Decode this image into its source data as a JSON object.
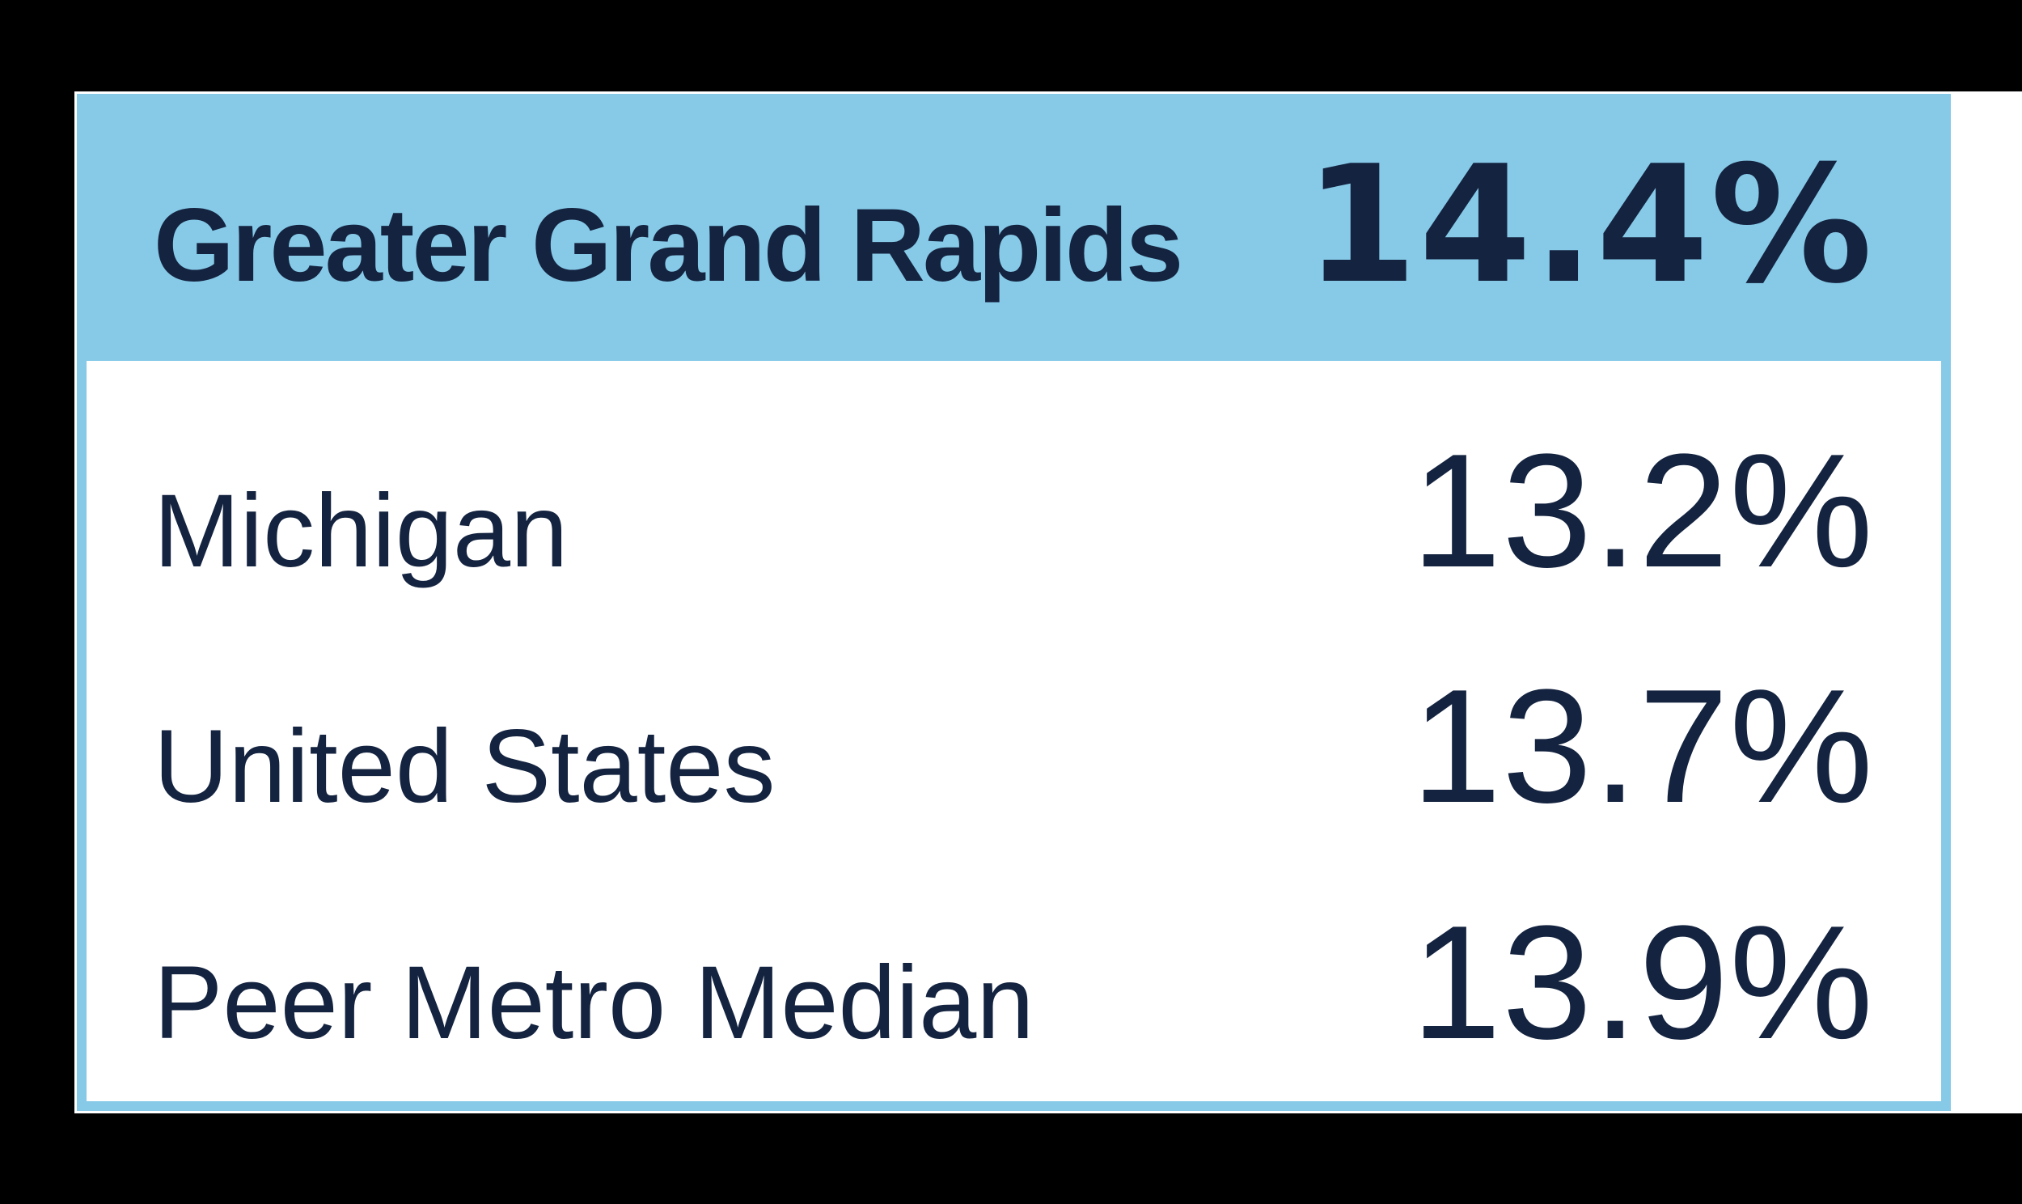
{
  "card": {
    "header": {
      "label": "Greater Grand Rapids",
      "value": "14.4%"
    },
    "rows": [
      {
        "label": "Michigan",
        "value": "13.2%"
      },
      {
        "label": "United States",
        "value": "13.7%"
      },
      {
        "label": "Peer Metro Median",
        "value": "13.9%"
      }
    ]
  },
  "colors": {
    "accent_blue": "#86cae8",
    "navy": "#14233f",
    "page_white": "#ffffff",
    "backdrop": "#000000"
  },
  "chart_data": {
    "type": "table",
    "categories": [
      "Greater Grand Rapids",
      "Michigan",
      "United States",
      "Peer Metro Median"
    ],
    "values": [
      14.4,
      13.2,
      13.7,
      13.9
    ],
    "unit": "%",
    "highlighted_category": "Greater Grand Rapids",
    "legend_position": "none",
    "grid": false
  }
}
